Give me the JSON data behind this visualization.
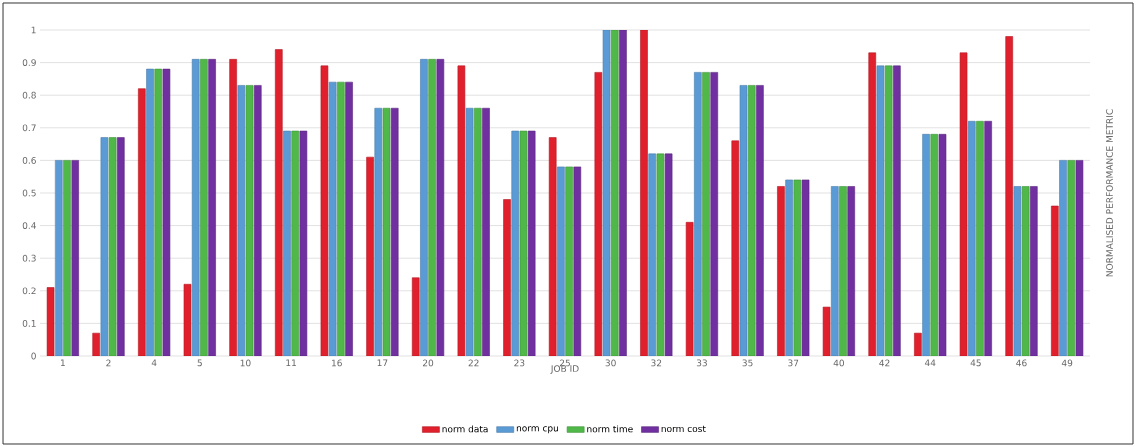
{
  "chart_data": {
    "type": "bar",
    "xlabel": "JOB ID",
    "ylabel": "NORMALISED  PERFORMANCE  METRIC",
    "categories": [
      "1",
      "2",
      "4",
      "5",
      "10",
      "11",
      "16",
      "17",
      "20",
      "22",
      "23",
      "25",
      "30",
      "32",
      "33",
      "35",
      "37",
      "40",
      "42",
      "44",
      "45",
      "46",
      "49"
    ],
    "series": [
      {
        "name": "norm data",
        "color": "#e0202c",
        "values": [
          0.21,
          0.07,
          0.82,
          0.22,
          0.91,
          0.94,
          0.89,
          0.61,
          0.24,
          0.89,
          0.48,
          0.67,
          0.87,
          1.0,
          0.41,
          0.66,
          0.52,
          0.15,
          0.93,
          0.07,
          0.93,
          0.98,
          0.46
        ]
      },
      {
        "name": "norm cpu",
        "color": "#5b9bd5",
        "values": [
          0.6,
          0.67,
          0.88,
          0.91,
          0.83,
          0.69,
          0.84,
          0.76,
          0.91,
          0.76,
          0.69,
          0.58,
          1.0,
          0.62,
          0.87,
          0.83,
          0.54,
          0.52,
          0.89,
          0.68,
          0.72,
          0.52,
          0.6
        ]
      },
      {
        "name": "norm time",
        "color": "#4fb848",
        "values": [
          0.6,
          0.67,
          0.88,
          0.91,
          0.83,
          0.69,
          0.84,
          0.76,
          0.91,
          0.76,
          0.69,
          0.58,
          1.0,
          0.62,
          0.87,
          0.83,
          0.54,
          0.52,
          0.89,
          0.68,
          0.72,
          0.52,
          0.6
        ]
      },
      {
        "name": "norm cost",
        "color": "#7030a0",
        "values": [
          0.6,
          0.67,
          0.88,
          0.91,
          0.83,
          0.69,
          0.84,
          0.76,
          0.91,
          0.76,
          0.69,
          0.58,
          1.0,
          0.62,
          0.87,
          0.83,
          0.54,
          0.52,
          0.89,
          0.68,
          0.72,
          0.52,
          0.6
        ]
      }
    ],
    "ylim": [
      0,
      1
    ],
    "yticks": [
      0,
      0.1,
      0.2,
      0.3,
      0.4,
      0.5,
      0.6,
      0.7,
      0.8,
      0.9,
      1
    ],
    "grid": "y",
    "legend": "bottom"
  }
}
